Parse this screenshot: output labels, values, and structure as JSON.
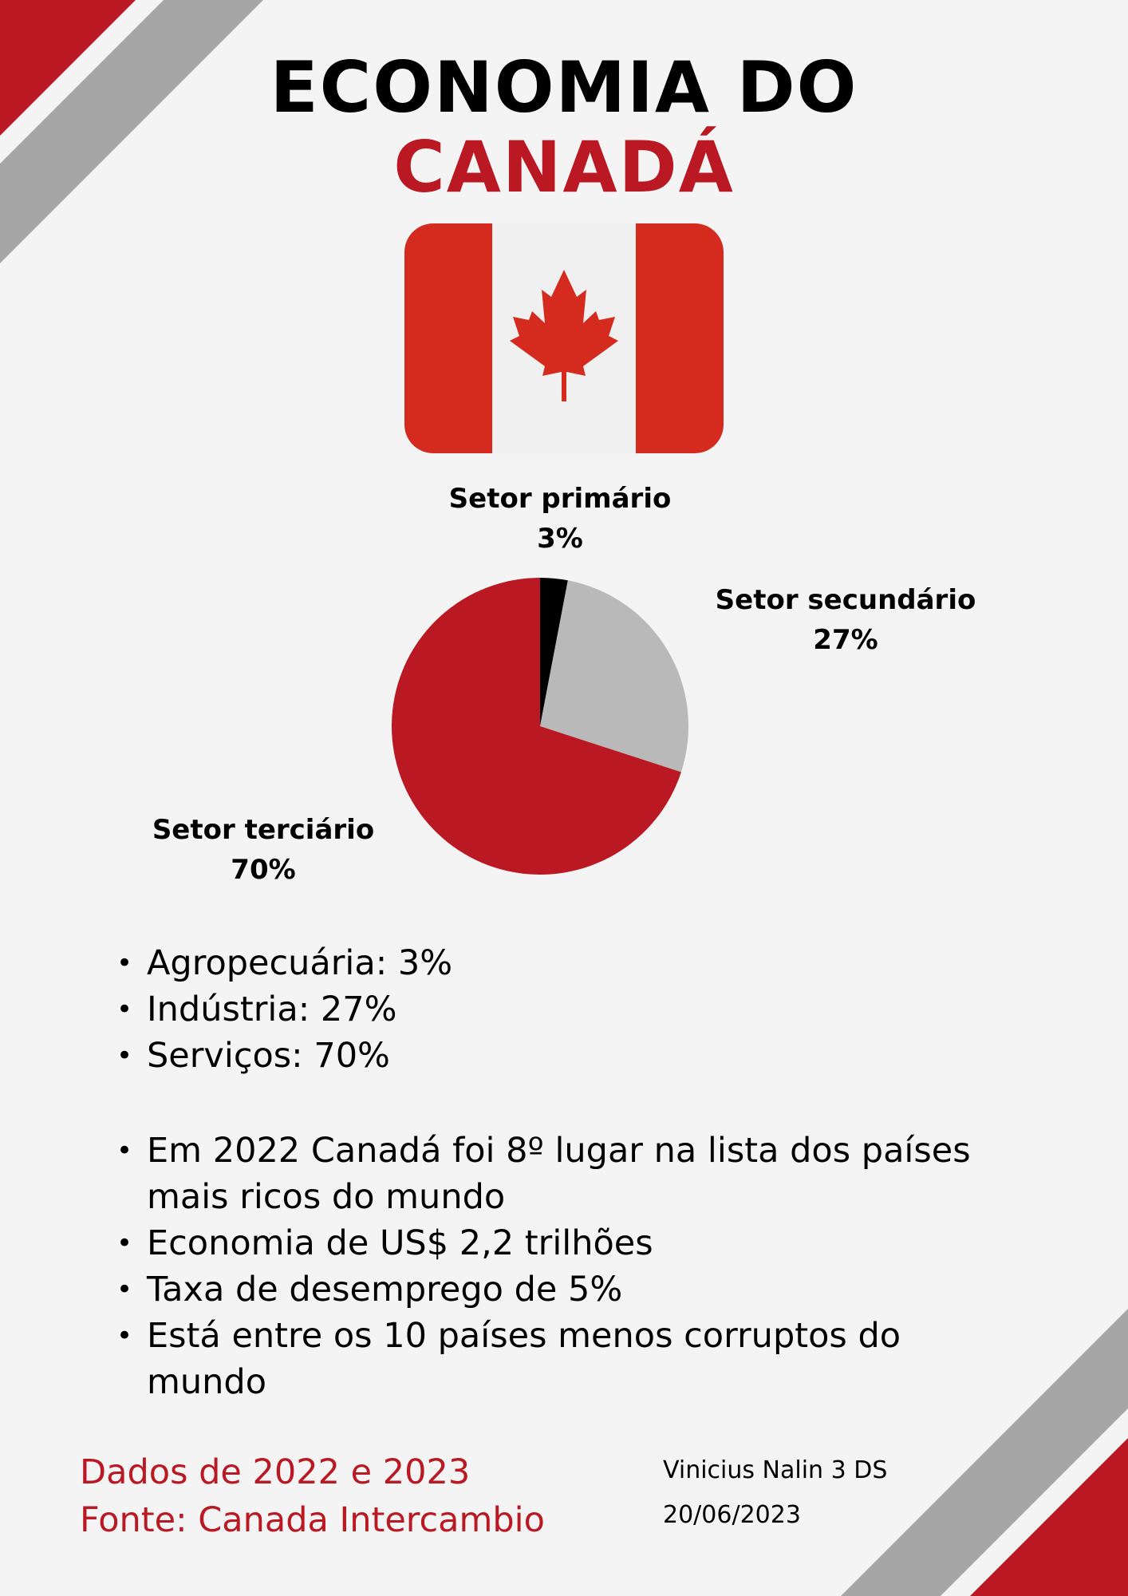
{
  "title": {
    "line1": "ECONOMIA DO",
    "line2": "CANADÁ"
  },
  "colors": {
    "accent_red": "#ba1822",
    "flag_red": "#d52b1e",
    "flag_white": "#f0f0f0",
    "stripe_gray": "#a6a6a6",
    "primary_slice": "#000000",
    "secondary_slice": "#b9b9b9",
    "tertiary_slice": "#ba1822",
    "background": "#f4f4f4"
  },
  "flag": {
    "icon": "canada-flag-icon"
  },
  "chart_data": {
    "type": "pie",
    "title": "",
    "slices": [
      {
        "label": "Setor primário",
        "value": 3,
        "value_label": "3%",
        "color": "#000000"
      },
      {
        "label": "Setor secundário",
        "value": 27,
        "value_label": "27%",
        "color": "#b9b9b9"
      },
      {
        "label": "Setor terciário",
        "value": 70,
        "value_label": "70%",
        "color": "#ba1822"
      }
    ]
  },
  "sectors_list": [
    "Agropecuária: 3%",
    "Indústria: 27%",
    "Serviços: 70%"
  ],
  "facts_list": [
    "Em 2022 Canadá foi 8º lugar na lista dos países mais ricos do mundo",
    "Economia de US$ 2,2 trilhões",
    "Taxa de desemprego de 5%",
    "Está entre os 10 países menos corruptos do mundo"
  ],
  "footer": {
    "data_years": "Dados de 2022 e 2023",
    "source": "Fonte: Canada Intercambio",
    "author": "Vinicius Nalin 3 DS",
    "date": "20/06/2023"
  }
}
